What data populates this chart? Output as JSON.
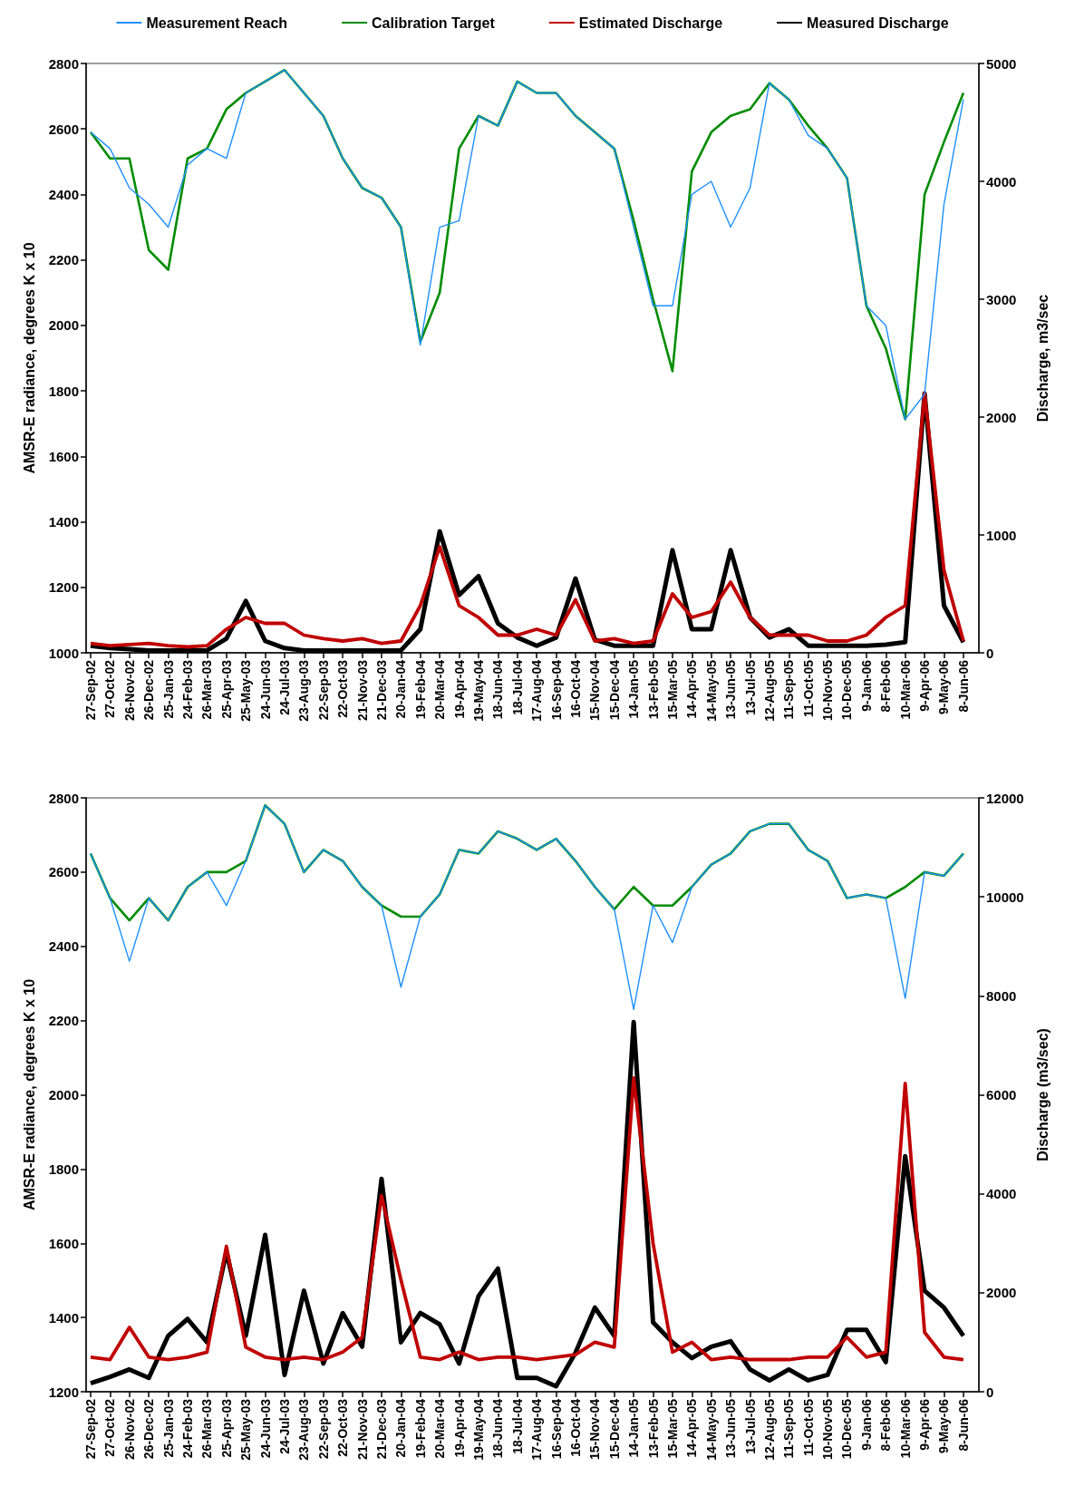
{
  "chart_data": [
    {
      "type": "line",
      "legend": "top",
      "grid": false,
      "ylabel": "AMSR-E radiance, degrees K x 10",
      "y2label": "Discharge, m3/sec",
      "x": [
        "2002-09-27",
        "2002-10-27",
        "2002-11-26",
        "2002-12-26",
        "2003-01-25",
        "2003-02-24",
        "2003-03-26",
        "2003-04-25",
        "2003-05-25",
        "2003-06-24",
        "2003-07-24",
        "2003-08-23",
        "2003-09-22",
        "2003-10-22",
        "2003-11-21",
        "2003-12-21",
        "2004-01-20",
        "2004-02-19",
        "2004-03-20",
        "2004-04-19",
        "2004-05-19",
        "2004-06-18",
        "2004-07-18",
        "2004-08-17",
        "2004-09-16",
        "2004-10-16",
        "2004-11-15",
        "2004-12-15",
        "2005-01-14",
        "2005-02-13",
        "2005-03-15",
        "2005-04-14",
        "2005-05-14",
        "2005-06-13",
        "2005-07-13",
        "2005-08-12",
        "2005-09-11",
        "2005-10-11",
        "2005-11-10",
        "2005-12-10",
        "2006-01-09",
        "2006-02-08",
        "2006-03-10",
        "2006-04-09",
        "2006-05-09",
        "2006-06-08"
      ],
      "xlim": [
        "2002-09-20",
        "2006-07-02"
      ],
      "xticks": [
        {
          "value": "2002-09-27",
          "label": "27-Sep-02"
        },
        {
          "value": "2002-10-27",
          "label": "27-Oct-02"
        },
        {
          "value": "2002-11-26",
          "label": "26-Nov-02"
        },
        {
          "value": "2002-12-26",
          "label": "26-Dec-02"
        },
        {
          "value": "2003-01-25",
          "label": "25-Jan-03"
        },
        {
          "value": "2003-02-24",
          "label": "24-Feb-03"
        },
        {
          "value": "2003-03-26",
          "label": "26-Mar-03"
        },
        {
          "value": "2003-04-25",
          "label": "25-Apr-03"
        },
        {
          "value": "2003-05-25",
          "label": "25-May-03"
        },
        {
          "value": "2003-06-24",
          "label": "24-Jun-03"
        },
        {
          "value": "2003-07-24",
          "label": "24-Jul-03"
        },
        {
          "value": "2003-08-23",
          "label": "23-Aug-03"
        },
        {
          "value": "2003-09-22",
          "label": "22-Sep-03"
        },
        {
          "value": "2003-10-22",
          "label": "22-Oct-03"
        },
        {
          "value": "2003-11-21",
          "label": "21-Nov-03"
        },
        {
          "value": "2003-12-21",
          "label": "21-Dec-03"
        },
        {
          "value": "2004-01-20",
          "label": "20-Jan-04"
        },
        {
          "value": "2004-02-19",
          "label": "19-Feb-04"
        },
        {
          "value": "2004-03-20",
          "label": "20-Mar-04"
        },
        {
          "value": "2004-04-19",
          "label": "19-Apr-04"
        },
        {
          "value": "2004-05-19",
          "label": "19-May-04"
        },
        {
          "value": "2004-06-18",
          "label": "18-Jun-04"
        },
        {
          "value": "2004-07-18",
          "label": "18-Jul-04"
        },
        {
          "value": "2004-08-17",
          "label": "17-Aug-04"
        },
        {
          "value": "2004-09-16",
          "label": "16-Sep-04"
        },
        {
          "value": "2004-10-16",
          "label": "16-Oct-04"
        },
        {
          "value": "2004-11-15",
          "label": "15-Nov-04"
        },
        {
          "value": "2004-12-15",
          "label": "15-Dec-04"
        },
        {
          "value": "2005-01-14",
          "label": "14-Jan-05"
        },
        {
          "value": "2005-02-13",
          "label": "13-Feb-05"
        },
        {
          "value": "2005-03-15",
          "label": "15-Mar-05"
        },
        {
          "value": "2005-04-14",
          "label": "14-Apr-05"
        },
        {
          "value": "2005-05-14",
          "label": "14-May-05"
        },
        {
          "value": "2005-06-13",
          "label": "13-Jun-05"
        },
        {
          "value": "2005-07-13",
          "label": "13-Jul-05"
        },
        {
          "value": "2005-08-12",
          "label": "12-Aug-05"
        },
        {
          "value": "2005-09-11",
          "label": "11-Sep-05"
        },
        {
          "value": "2005-10-11",
          "label": "11-Oct-05"
        },
        {
          "value": "2005-11-10",
          "label": "10-Nov-05"
        },
        {
          "value": "2005-12-10",
          "label": "10-Dec-05"
        },
        {
          "value": "2006-01-09",
          "label": "9-Jan-06"
        },
        {
          "value": "2006-02-08",
          "label": "8-Feb-06"
        },
        {
          "value": "2006-03-10",
          "label": "10-Mar-06"
        },
        {
          "value": "2006-04-09",
          "label": "9-Apr-06"
        },
        {
          "value": "2006-05-09",
          "label": "9-May-06"
        },
        {
          "value": "2006-06-08",
          "label": "8-Jun-06"
        }
      ],
      "ylim": [
        1000,
        2800
      ],
      "yticks": [
        1000,
        1200,
        1400,
        1600,
        1800,
        2000,
        2200,
        2400,
        2600,
        2800
      ],
      "y2lim": [
        0,
        5000
      ],
      "y2ticks": [
        0,
        1000,
        2000,
        3000,
        4000,
        5000
      ],
      "series": [
        {
          "name": "Measurement Reach",
          "color": "#1e90ff",
          "values": [
            2590,
            2540,
            2420,
            2370,
            2300,
            2490,
            2540,
            2510,
            2710,
            2745,
            2780,
            2710,
            2640,
            2510,
            2420,
            2390,
            2300,
            1940,
            2300,
            2320,
            2640,
            2610,
            2745,
            2710,
            2710,
            2640,
            2590,
            2540,
            2300,
            2060,
            2060,
            2400,
            2440,
            2300,
            2420,
            2740,
            2690,
            2580,
            2540,
            2450,
            2060,
            2000,
            1713,
            1790,
            2370,
            2690
          ]
        },
        {
          "name": "Calibration Target",
          "color": "#008c00",
          "values": [
            2590,
            2510,
            2510,
            2230,
            2170,
            2510,
            2540,
            2660,
            2710,
            2745,
            2780,
            2710,
            2640,
            2510,
            2420,
            2390,
            2300,
            1950,
            2100,
            2540,
            2640,
            2610,
            2745,
            2710,
            2710,
            2640,
            2590,
            2540,
            2320,
            2080,
            1860,
            2470,
            2590,
            2640,
            2660,
            2740,
            2690,
            2610,
            2540,
            2450,
            2060,
            1930,
            1713,
            2400,
            2560,
            2710
          ]
        },
        {
          "name": "Estimated Discharge",
          "color": "#c00000",
          "axis": "y2",
          "values": [
            80,
            60,
            70,
            80,
            60,
            50,
            60,
            200,
            300,
            250,
            250,
            150,
            120,
            100,
            120,
            80,
            100,
            400,
            900,
            400,
            300,
            150,
            150,
            200,
            150,
            450,
            100,
            120,
            80,
            100,
            500,
            300,
            350,
            600,
            300,
            150,
            150,
            150,
            100,
            100,
            150,
            300,
            400,
            2200,
            700,
            100
          ]
        },
        {
          "name": "Measured Discharge",
          "color": "#000000",
          "axis": "y2",
          "values": [
            60,
            40,
            30,
            20,
            20,
            20,
            20,
            120,
            440,
            100,
            40,
            20,
            20,
            20,
            20,
            20,
            20,
            200,
            1030,
            490,
            650,
            250,
            130,
            60,
            130,
            630,
            110,
            60,
            60,
            60,
            870,
            200,
            200,
            870,
            300,
            130,
            200,
            60,
            60,
            60,
            60,
            70,
            90,
            2200,
            400,
            90
          ]
        }
      ]
    },
    {
      "type": "line",
      "legend": false,
      "grid": false,
      "ylabel": "AMSR-E radiance, degrees K x 10",
      "y2label": "Discharge (m3/sec)",
      "x": [
        "2002-09-27",
        "2002-10-27",
        "2002-11-26",
        "2002-12-26",
        "2003-01-25",
        "2003-02-24",
        "2003-03-26",
        "2003-04-25",
        "2003-05-25",
        "2003-06-24",
        "2003-07-24",
        "2003-08-23",
        "2003-09-22",
        "2003-10-22",
        "2003-11-21",
        "2003-12-21",
        "2004-01-20",
        "2004-02-19",
        "2004-03-20",
        "2004-04-19",
        "2004-05-19",
        "2004-06-18",
        "2004-07-18",
        "2004-08-17",
        "2004-09-16",
        "2004-10-16",
        "2004-11-15",
        "2004-12-15",
        "2005-01-14",
        "2005-02-13",
        "2005-03-15",
        "2005-04-14",
        "2005-05-14",
        "2005-06-13",
        "2005-07-13",
        "2005-08-12",
        "2005-09-11",
        "2005-10-11",
        "2005-11-10",
        "2005-12-10",
        "2006-01-09",
        "2006-02-08",
        "2006-03-10",
        "2006-04-09",
        "2006-05-09",
        "2006-06-08"
      ],
      "xlim": [
        "2002-09-20",
        "2006-07-02"
      ],
      "xticks": [
        {
          "value": "2002-09-27",
          "label": "27-Sep-02"
        },
        {
          "value": "2002-10-27",
          "label": "27-Oct-02"
        },
        {
          "value": "2002-11-26",
          "label": "26-Nov-02"
        },
        {
          "value": "2002-12-26",
          "label": "26-Dec-02"
        },
        {
          "value": "2003-01-25",
          "label": "25-Jan-03"
        },
        {
          "value": "2003-02-24",
          "label": "24-Feb-03"
        },
        {
          "value": "2003-03-26",
          "label": "26-Mar-03"
        },
        {
          "value": "2003-04-25",
          "label": "25-Apr-03"
        },
        {
          "value": "2003-05-25",
          "label": "25-May-03"
        },
        {
          "value": "2003-06-24",
          "label": "24-Jun-03"
        },
        {
          "value": "2003-07-24",
          "label": "24-Jul-03"
        },
        {
          "value": "2003-08-23",
          "label": "23-Aug-03"
        },
        {
          "value": "2003-09-22",
          "label": "22-Sep-03"
        },
        {
          "value": "2003-10-22",
          "label": "22-Oct-03"
        },
        {
          "value": "2003-11-21",
          "label": "21-Nov-03"
        },
        {
          "value": "2003-12-21",
          "label": "21-Dec-03"
        },
        {
          "value": "2004-01-20",
          "label": "20-Jan-04"
        },
        {
          "value": "2004-02-19",
          "label": "19-Feb-04"
        },
        {
          "value": "2004-03-20",
          "label": "20-Mar-04"
        },
        {
          "value": "2004-04-19",
          "label": "19-Apr-04"
        },
        {
          "value": "2004-05-19",
          "label": "19-May-04"
        },
        {
          "value": "2004-06-18",
          "label": "18-Jun-04"
        },
        {
          "value": "2004-07-18",
          "label": "18-Jul-04"
        },
        {
          "value": "2004-08-17",
          "label": "17-Aug-04"
        },
        {
          "value": "2004-09-16",
          "label": "16-Sep-04"
        },
        {
          "value": "2004-10-16",
          "label": "16-Oct-04"
        },
        {
          "value": "2004-11-15",
          "label": "15-Nov-04"
        },
        {
          "value": "2004-12-15",
          "label": "15-Dec-04"
        },
        {
          "value": "2005-01-14",
          "label": "14-Jan-05"
        },
        {
          "value": "2005-02-13",
          "label": "13-Feb-05"
        },
        {
          "value": "2005-03-15",
          "label": "15-Mar-05"
        },
        {
          "value": "2005-04-14",
          "label": "14-Apr-05"
        },
        {
          "value": "2005-05-14",
          "label": "14-May-05"
        },
        {
          "value": "2005-06-13",
          "label": "13-Jun-05"
        },
        {
          "value": "2005-07-13",
          "label": "13-Jul-05"
        },
        {
          "value": "2005-08-12",
          "label": "12-Aug-05"
        },
        {
          "value": "2005-09-11",
          "label": "11-Sep-05"
        },
        {
          "value": "2005-10-11",
          "label": "11-Oct-05"
        },
        {
          "value": "2005-11-10",
          "label": "10-Nov-05"
        },
        {
          "value": "2005-12-10",
          "label": "10-Dec-05"
        },
        {
          "value": "2006-01-09",
          "label": "9-Jan-06"
        },
        {
          "value": "2006-02-08",
          "label": "8-Feb-06"
        },
        {
          "value": "2006-03-10",
          "label": "10-Mar-06"
        },
        {
          "value": "2006-04-09",
          "label": "9-Apr-06"
        },
        {
          "value": "2006-05-09",
          "label": "9-May-06"
        },
        {
          "value": "2006-06-08",
          "label": "8-Jun-06"
        }
      ],
      "ylim": [
        1200,
        2800
      ],
      "yticks": [
        1200,
        1400,
        1600,
        1800,
        2000,
        2200,
        2400,
        2600,
        2800
      ],
      "y2lim": [
        0,
        12000
      ],
      "y2ticks": [
        0,
        2000,
        4000,
        6000,
        8000,
        10000,
        12000
      ],
      "series": [
        {
          "color": "#1e90ff",
          "values": [
            2650,
            2530,
            2360,
            2530,
            2470,
            2560,
            2600,
            2510,
            2630,
            2780,
            2730,
            2600,
            2660,
            2630,
            2560,
            2510,
            2290,
            2480,
            2540,
            2660,
            2650,
            2710,
            2690,
            2660,
            2690,
            2630,
            2560,
            2500,
            2230,
            2510,
            2410,
            2560,
            2620,
            2650,
            2710,
            2730,
            2730,
            2660,
            2630,
            2530,
            2540,
            2530,
            2260,
            2600,
            2590,
            2650
          ]
        },
        {
          "color": "#008c00",
          "values": [
            2650,
            2530,
            2470,
            2530,
            2470,
            2560,
            2600,
            2600,
            2630,
            2780,
            2730,
            2600,
            2660,
            2630,
            2560,
            2510,
            2480,
            2480,
            2540,
            2660,
            2650,
            2710,
            2690,
            2660,
            2690,
            2630,
            2560,
            2500,
            2560,
            2510,
            2510,
            2560,
            2620,
            2650,
            2710,
            2730,
            2730,
            2660,
            2630,
            2530,
            2540,
            2530,
            2560,
            2600,
            2590,
            2650
          ]
        },
        {
          "color": "#c00000",
          "axis": "y2",
          "values": [
            700,
            650,
            1300,
            700,
            650,
            700,
            800,
            2940,
            900,
            700,
            650,
            700,
            650,
            800,
            1100,
            3960,
            2260,
            700,
            650,
            800,
            650,
            700,
            700,
            650,
            700,
            750,
            1000,
            900,
            6340,
            3000,
            800,
            1000,
            650,
            700,
            650,
            650,
            650,
            700,
            700,
            1100,
            700,
            800,
            6230,
            1200,
            700,
            650
          ]
        },
        {
          "color": "#000000",
          "axis": "y2",
          "values": [
            170,
            300,
            450,
            280,
            1130,
            1470,
            1000,
            2830,
            1130,
            3170,
            340,
            2040,
            570,
            1590,
            910,
            4300,
            1000,
            1590,
            1360,
            570,
            1930,
            2490,
            280,
            280,
            110,
            790,
            1700,
            1130,
            7470,
            1400,
            1000,
            680,
            910,
            1020,
            450,
            230,
            450,
            230,
            340,
            1250,
            1250,
            600,
            4760,
            2040,
            1700,
            1130
          ]
        }
      ]
    }
  ]
}
